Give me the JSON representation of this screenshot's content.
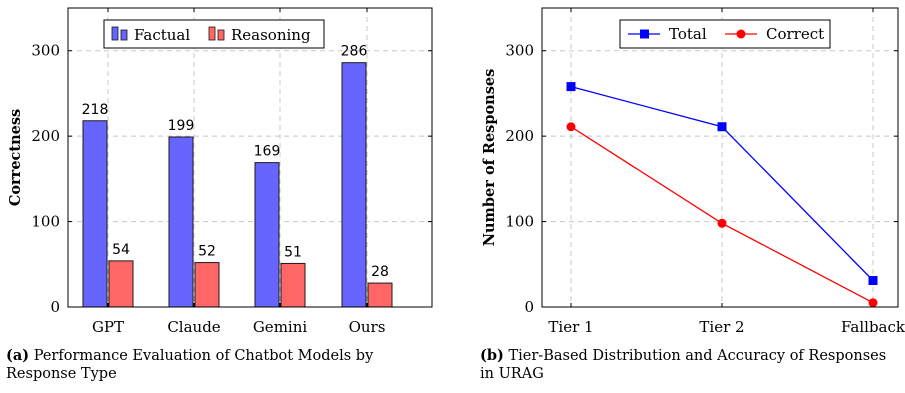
{
  "chart_data": [
    {
      "type": "bar",
      "categories": [
        "GPT",
        "Claude",
        "Gemini",
        "Ours"
      ],
      "series": [
        {
          "name": "Factual",
          "values": [
            218,
            199,
            169,
            286
          ],
          "color": "#6666ff"
        },
        {
          "name": "Reasoning",
          "values": [
            54,
            52,
            51,
            28
          ],
          "color": "#ff6666"
        }
      ],
      "ylabel": "Correctness",
      "xlabel": "",
      "ylim": [
        0,
        350
      ],
      "yticks": [
        0,
        100,
        200,
        300
      ],
      "grid": true,
      "legend": "top-center",
      "data_labels": true
    },
    {
      "type": "line",
      "categories": [
        "Tier 1",
        "Tier 2",
        "Fallback"
      ],
      "series": [
        {
          "name": "Total",
          "values": [
            258,
            211,
            31
          ],
          "color": "#0000ff",
          "marker": "square"
        },
        {
          "name": "Correct",
          "values": [
            211,
            98,
            5
          ],
          "color": "#ff0000",
          "marker": "circle"
        }
      ],
      "ylabel": "Number of Responses",
      "xlabel": "",
      "ylim": [
        0,
        350
      ],
      "yticks": [
        0,
        100,
        200,
        300
      ],
      "grid": true,
      "legend": "top-center"
    }
  ],
  "captions": {
    "a": {
      "tag": "(a)",
      "text": "Performance Evaluation of Chatbot Models by Response Type"
    },
    "b": {
      "tag": "(b)",
      "text": "Tier-Based Distribution and Accuracy of Responses in URAG"
    }
  }
}
